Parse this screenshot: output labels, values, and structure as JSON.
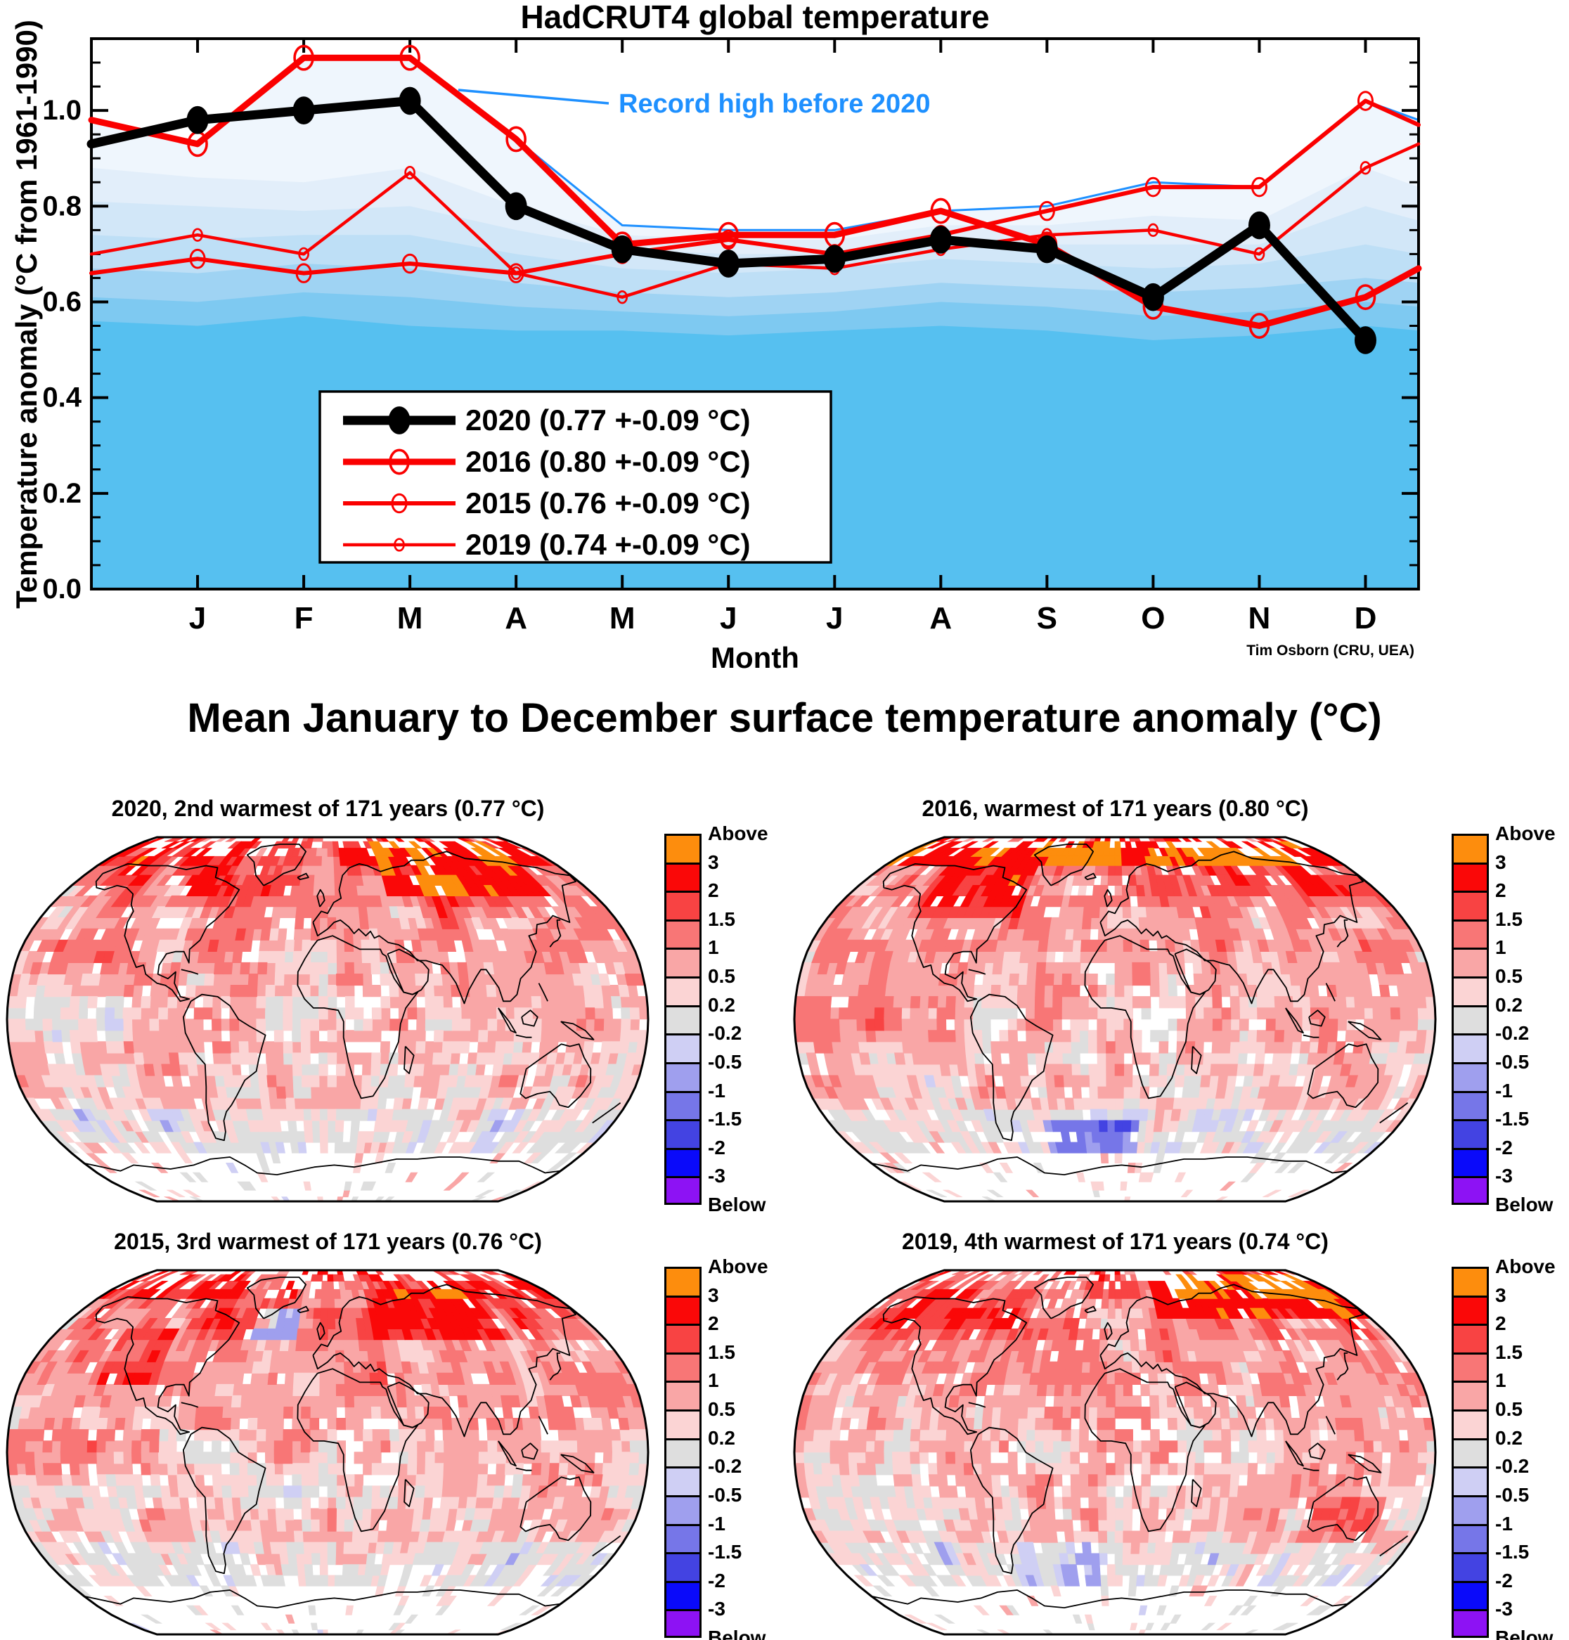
{
  "chart": {
    "title": "HadCRUT4 global temperature",
    "ylabel": "Temperature anomaly (°C from 1961-1990)",
    "xlabel": "Month",
    "credit": "Tim Osborn (CRU, UEA)",
    "annotation": "Record high before 2020",
    "accent_blue": "#1e90ff",
    "months": [
      "J",
      "F",
      "M",
      "A",
      "M",
      "J",
      "J",
      "A",
      "S",
      "O",
      "N",
      "D"
    ],
    "ytick_labels": [
      "0.0",
      "0.2",
      "0.4",
      "0.6",
      "0.8",
      "1.0"
    ],
    "ylim": [
      0,
      1.15
    ],
    "chart_data": {
      "type": "line",
      "x": [
        1,
        2,
        3,
        4,
        5,
        6,
        7,
        8,
        9,
        10,
        11,
        12
      ],
      "series": [
        {
          "name": "2020",
          "label": "2020 (0.77 +-0.09 °C)",
          "color": "#000000",
          "line_width": 13,
          "marker": "filled",
          "marker_size": 15.5,
          "edge_left": 0.93,
          "edge_right": null,
          "values": [
            0.98,
            1.0,
            1.02,
            0.8,
            0.71,
            0.68,
            0.69,
            0.73,
            0.71,
            0.61,
            0.76,
            0.52
          ]
        },
        {
          "name": "2016",
          "label": "2016 (0.80 +-0.09 °C)",
          "color": "#fa0000",
          "line_width": 9,
          "marker": "open",
          "marker_size": 13,
          "edge_left": 0.98,
          "edge_right": 0.67,
          "values": [
            0.93,
            1.11,
            1.11,
            0.94,
            0.72,
            0.74,
            0.74,
            0.79,
            0.72,
            0.59,
            0.55,
            0.61
          ]
        },
        {
          "name": "2015",
          "label": "2015 (0.76 +-0.09 °C)",
          "color": "#fa0000",
          "line_width": 6,
          "marker": "open",
          "marker_size": 10,
          "edge_left": 0.66,
          "edge_right": 0.97,
          "values": [
            0.69,
            0.66,
            0.68,
            0.66,
            0.7,
            0.73,
            0.7,
            0.74,
            0.79,
            0.84,
            0.84,
            1.02
          ]
        },
        {
          "name": "2019",
          "label": "2019 (0.74 +-0.09 °C)",
          "color": "#fa0000",
          "line_width": 4.5,
          "marker": "open",
          "marker_size": 6.5,
          "edge_left": 0.7,
          "edge_right": 0.93,
          "values": [
            0.74,
            0.7,
            0.87,
            0.66,
            0.61,
            0.68,
            0.67,
            0.71,
            0.74,
            0.75,
            0.7,
            0.88
          ]
        }
      ],
      "record_envelope": {
        "color": "#1e90ff",
        "edge_left": 0.98,
        "edge_right": 0.98,
        "values": [
          0.93,
          1.11,
          1.11,
          0.94,
          0.76,
          0.75,
          0.75,
          0.79,
          0.8,
          0.85,
          0.84,
          1.02
        ]
      },
      "background_bands": [
        {
          "color": "#eff6fd",
          "edge_left": 0.98,
          "edge_right": 0.98,
          "top": [
            0.93,
            1.11,
            1.11,
            0.94,
            0.76,
            0.75,
            0.75,
            0.79,
            0.8,
            0.85,
            0.84,
            1.02
          ]
        },
        {
          "color": "#e2eefa",
          "edge_left": 0.88,
          "edge_right": 0.84,
          "top": [
            0.86,
            0.85,
            0.88,
            0.8,
            0.74,
            0.73,
            0.73,
            0.76,
            0.76,
            0.78,
            0.77,
            0.88
          ]
        },
        {
          "color": "#d2e7f8",
          "edge_left": 0.81,
          "edge_right": 0.77,
          "top": [
            0.8,
            0.79,
            0.8,
            0.75,
            0.71,
            0.7,
            0.7,
            0.73,
            0.72,
            0.72,
            0.72,
            0.8
          ]
        },
        {
          "color": "#bedff6",
          "edge_left": 0.74,
          "edge_right": 0.7,
          "top": [
            0.73,
            0.74,
            0.74,
            0.7,
            0.67,
            0.66,
            0.67,
            0.69,
            0.68,
            0.67,
            0.68,
            0.72
          ]
        },
        {
          "color": "#9fd3f3",
          "edge_left": 0.67,
          "edge_right": 0.64,
          "top": [
            0.66,
            0.68,
            0.67,
            0.64,
            0.62,
            0.61,
            0.62,
            0.64,
            0.63,
            0.62,
            0.63,
            0.65
          ]
        },
        {
          "color": "#7ec9f1",
          "edge_left": 0.61,
          "edge_right": 0.59,
          "top": [
            0.6,
            0.62,
            0.61,
            0.59,
            0.58,
            0.57,
            0.58,
            0.6,
            0.59,
            0.57,
            0.58,
            0.6
          ]
        },
        {
          "color": "#56c0f0",
          "edge_left": 0.56,
          "edge_right": 0.54,
          "top": [
            0.55,
            0.57,
            0.55,
            0.54,
            0.54,
            0.53,
            0.54,
            0.55,
            0.54,
            0.52,
            0.53,
            0.55
          ]
        }
      ]
    }
  },
  "maps": {
    "heading": "Mean January to December surface temperature anomaly (°C)",
    "panels": [
      {
        "year": "2020",
        "title": "2020, 2nd warmest of 171 years (0.77 °C)",
        "seed": 2020,
        "patches": [
          [
            40,
            55,
            150,
            85,
            1.5
          ],
          [
            -180,
            62,
            -80,
            85,
            0.5
          ],
          [
            60,
            45,
            125,
            65,
            0.5
          ],
          [
            -180,
            -10,
            -100,
            8,
            -0.25
          ]
        ]
      },
      {
        "year": "2016",
        "title": "2016, warmest of 171 years (0.80 °C)",
        "seed": 2016,
        "patches": [
          [
            -180,
            70,
            180,
            86,
            1.2
          ],
          [
            -130,
            45,
            -60,
            70,
            0.9
          ],
          [
            50,
            55,
            150,
            78,
            0.8
          ],
          [
            -45,
            -58,
            15,
            -44,
            -1.2
          ],
          [
            -180,
            -8,
            -90,
            8,
            0.5
          ]
        ]
      },
      {
        "year": "2015",
        "title": "2015, 3rd warmest of 171 years (0.76 °C)",
        "seed": 2015,
        "patches": [
          [
            -48,
            48,
            -18,
            63,
            -1.8
          ],
          [
            -135,
            30,
            -100,
            55,
            0.9
          ],
          [
            30,
            50,
            120,
            75,
            0.9
          ],
          [
            -180,
            -8,
            -95,
            8,
            0.6
          ]
        ]
      },
      {
        "year": "2019",
        "title": "2019, 4th warmest of 171 years (0.74 °C)",
        "seed": 2019,
        "patches": [
          [
            30,
            58,
            180,
            85,
            1.4
          ],
          [
            -150,
            55,
            -110,
            75,
            0.8
          ],
          [
            110,
            -40,
            155,
            -18,
            0.7
          ],
          [
            -60,
            -62,
            -10,
            -42,
            -0.5
          ]
        ]
      }
    ],
    "colorbar": {
      "above_label": "Above",
      "below_label": "Below",
      "tick_labels": [
        "3",
        "2",
        "1.5",
        "1",
        "0.5",
        "0.2",
        "-0.2",
        "-0.5",
        "-1",
        "-1.5",
        "-2",
        "-3"
      ],
      "thresholds": [
        3,
        2,
        1.5,
        1,
        0.5,
        0.2,
        -0.2,
        -0.5,
        -1,
        -1.5,
        -2,
        -3
      ],
      "colors": [
        "#fd8d0d",
        "#fa0808",
        "#f84343",
        "#f87676",
        "#f9a6a6",
        "#fbd4d4",
        "#dedede",
        "#cfcff4",
        "#9f9fee",
        "#7676e8",
        "#4343e2",
        "#0a0afa",
        "#8d12f4"
      ]
    }
  }
}
